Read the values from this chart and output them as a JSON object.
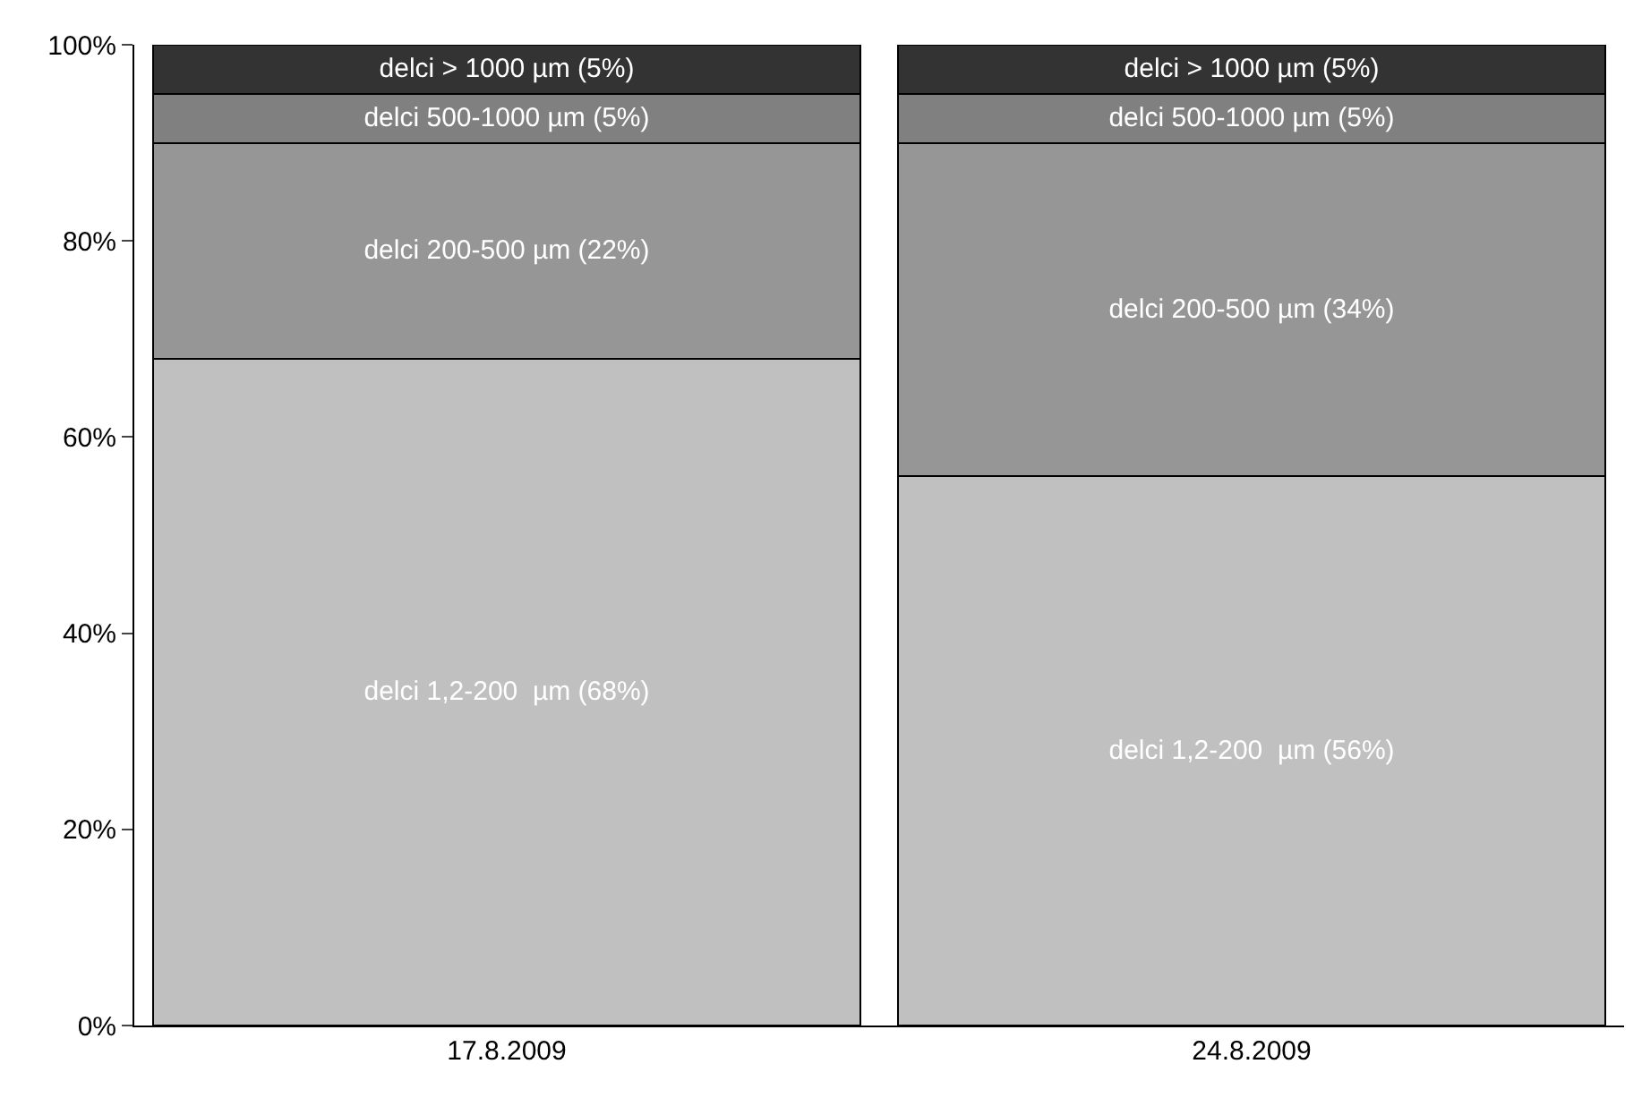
{
  "chart_data": {
    "type": "bar",
    "stacked": true,
    "categories": [
      "17.8.2009",
      "24.8.2009"
    ],
    "series": [
      {
        "color": "#c0c0c0",
        "values": [
          68,
          56
        ],
        "value_labels": [
          "delci 1,2-200  µm (68%)",
          "delci 1,2-200  µm (56%)"
        ]
      },
      {
        "color": "#969696",
        "values": [
          22,
          34
        ],
        "value_labels": [
          "delci 200-500 µm (22%)",
          "delci 200-500 µm (34%)"
        ]
      },
      {
        "color": "#808080",
        "values": [
          5,
          5
        ],
        "value_labels": [
          "delci 500-1000 µm (5%)",
          "delci 500-1000 µm (5%)"
        ]
      },
      {
        "color": "#333333",
        "values": [
          5,
          5
        ],
        "value_labels": [
          "delci > 1000 µm (5%)",
          "delci > 1000 µm (5%)"
        ]
      }
    ],
    "ylim": [
      0,
      100
    ],
    "yticks": [
      {
        "value": 0,
        "label": "0%"
      },
      {
        "value": 20,
        "label": "20%"
      },
      {
        "value": 40,
        "label": "40%"
      },
      {
        "value": 60,
        "label": "60%"
      },
      {
        "value": 80,
        "label": "80%"
      },
      {
        "value": 100,
        "label": "100%"
      }
    ],
    "grid": false
  }
}
